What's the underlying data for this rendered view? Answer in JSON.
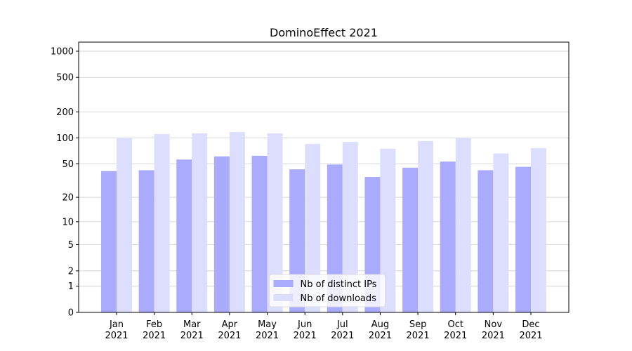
{
  "chart_data": {
    "type": "bar",
    "title": "DominoEffect 2021",
    "categories": [
      "Jan\n2021",
      "Feb\n2021",
      "Mar\n2021",
      "Apr\n2021",
      "May\n2021",
      "Jun\n2021",
      "Jul\n2021",
      "Aug\n2021",
      "Sep\n2021",
      "Oct\n2021",
      "Nov\n2021",
      "Dec\n2021"
    ],
    "series": [
      {
        "name": "Nb of distinct IPs",
        "color": "#aaaaff",
        "values": [
          41,
          42,
          56,
          61,
          62,
          43,
          49,
          35,
          45,
          53,
          42,
          46
        ]
      },
      {
        "name": "Nb of downloads",
        "color": "#ddddff",
        "values": [
          100,
          111,
          113,
          117,
          113,
          85,
          90,
          75,
          92,
          100,
          66,
          76
        ]
      }
    ],
    "yscale": "log1p",
    "ylim": [
      0,
      1272
    ],
    "yticks": [
      0,
      1,
      2,
      5,
      10,
      20,
      50,
      100,
      200,
      500,
      1000
    ],
    "grid": true,
    "legend": "lower center"
  }
}
